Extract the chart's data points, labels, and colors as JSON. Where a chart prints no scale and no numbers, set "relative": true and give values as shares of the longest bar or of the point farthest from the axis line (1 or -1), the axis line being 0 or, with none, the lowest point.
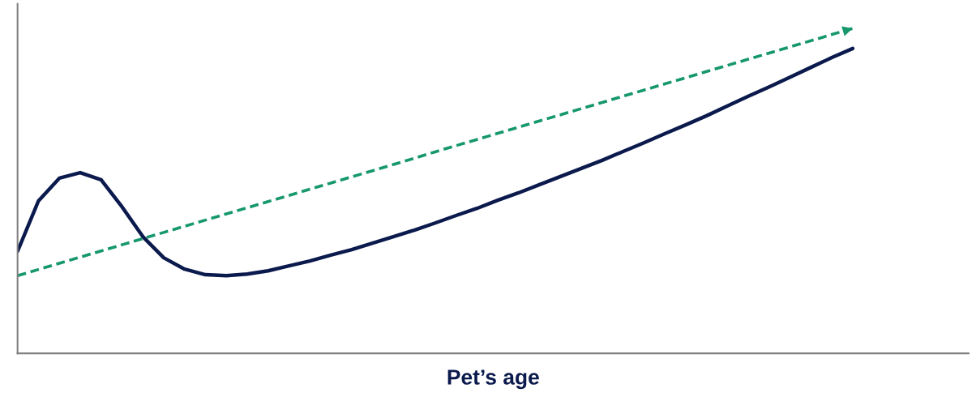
{
  "chart_data": {
    "type": "line",
    "relative": true,
    "xlabel": "Pet’s age",
    "legend": false,
    "categories": [
      null,
      null,
      null,
      null,
      null,
      null,
      null,
      null,
      null,
      null,
      null,
      null,
      null,
      null,
      null,
      null,
      null,
      null,
      null,
      null,
      null,
      null,
      null,
      null,
      null,
      null,
      null,
      null,
      null,
      null,
      null,
      null,
      null,
      null,
      null,
      null,
      null,
      null,
      null,
      null,
      null
    ],
    "series": [
      {
        "color": "#0b1a4d",
        "line_style": "solid",
        "values": [
          0.314,
          0.469,
          0.539,
          0.556,
          0.534,
          0.451,
          0.359,
          0.294,
          0.259,
          0.242,
          0.239,
          0.244,
          0.254,
          0.269,
          0.284,
          0.302,
          0.319,
          0.339,
          0.359,
          0.379,
          0.401,
          0.424,
          0.446,
          0.471,
          0.494,
          0.519,
          0.544,
          0.569,
          0.594,
          0.621,
          0.648,
          0.676,
          0.703,
          0.731,
          0.761,
          0.791,
          0.82,
          0.85,
          0.88,
          0.91,
          0.938
        ]
      },
      {
        "color": "#16976c",
        "line_style": "dashed",
        "values": [
          0.239,
          0.258,
          0.277,
          0.296,
          0.315,
          0.334,
          0.353,
          0.372,
          0.391,
          0.41,
          0.429,
          0.448,
          0.467,
          0.486,
          0.505,
          0.524,
          0.543,
          0.562,
          0.581,
          0.6,
          0.62,
          0.639,
          0.658,
          0.677,
          0.696,
          0.715,
          0.734,
          0.753,
          0.772,
          0.791,
          0.81,
          0.829,
          0.848,
          0.867,
          0.886,
          0.905,
          0.924,
          0.943,
          0.962,
          0.981,
          1.0
        ]
      }
    ]
  }
}
